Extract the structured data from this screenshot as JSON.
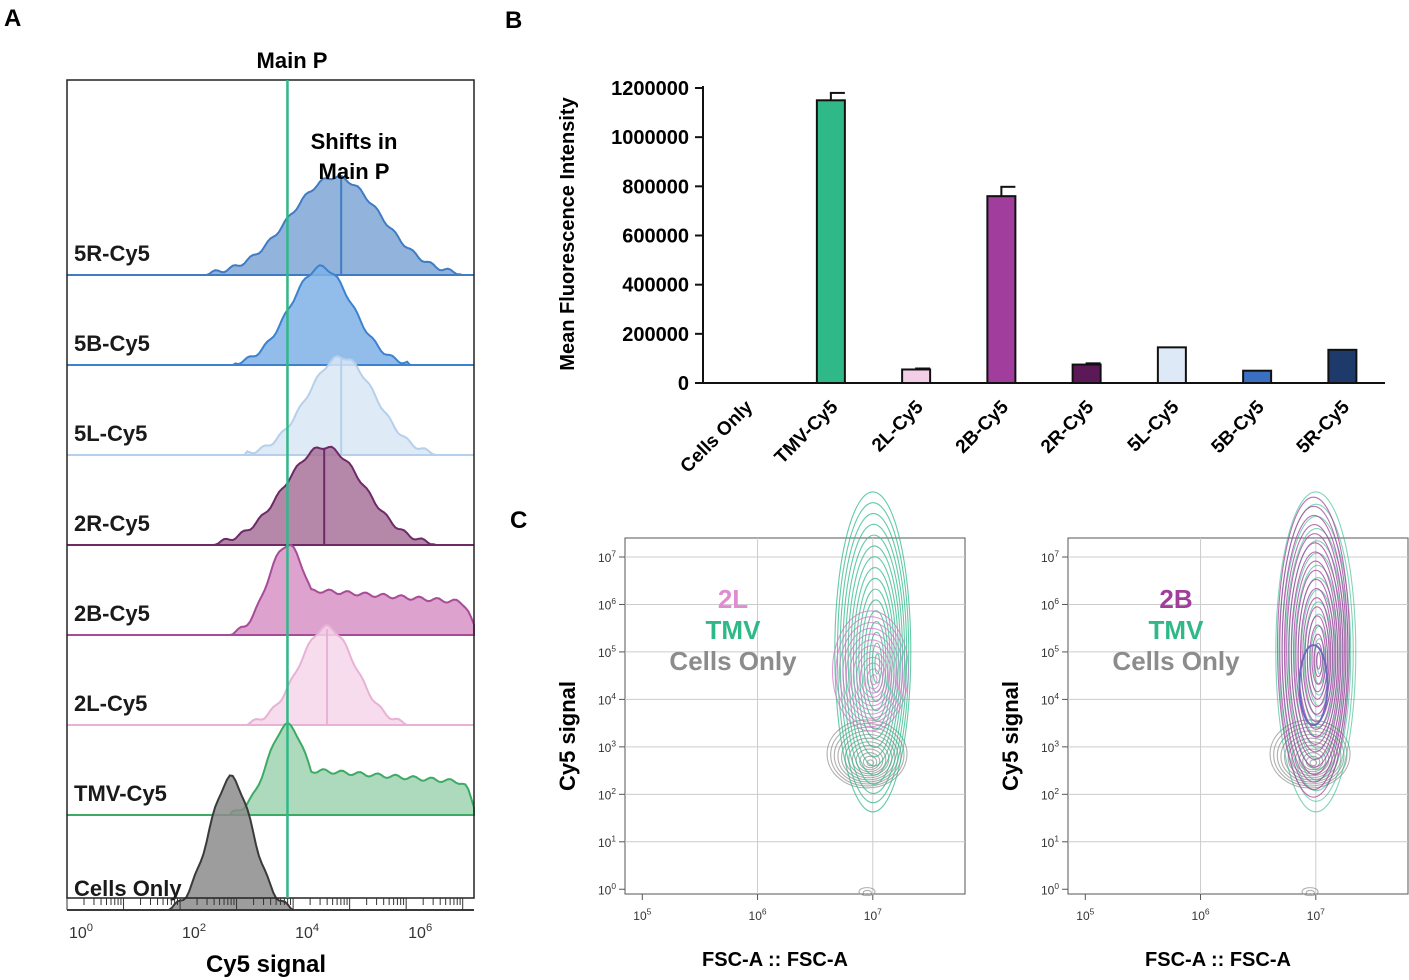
{
  "panel_a": {
    "letter": "A",
    "title": "Main P",
    "annotation": [
      "Shifts in",
      "Main P"
    ],
    "xlabel": "Cy5 signal",
    "x_ticks": [
      {
        "base": "10",
        "exp": "0",
        "log": 0
      },
      {
        "base": "10",
        "exp": "2",
        "log": 2
      },
      {
        "base": "10",
        "exp": "4",
        "log": 4
      },
      {
        "base": "10",
        "exp": "6",
        "log": 6
      }
    ],
    "x_range_log": [
      0,
      7.2
    ],
    "main_p_log": 3.9,
    "tracks": [
      {
        "label": "5R-Cy5",
        "fill": "#7fa7d6",
        "line": "#3f7cc4",
        "peak_log": 4.75,
        "width_log": 0.8,
        "shape": "gauss",
        "marker_log": 4.85
      },
      {
        "label": "5B-Cy5",
        "fill": "#7fb2e6",
        "line": "#3d82cf",
        "peak_log": 4.5,
        "width_log": 0.55,
        "shape": "gauss",
        "marker_log": null
      },
      {
        "label": "5L-Cy5",
        "fill": "#d8e6f5",
        "line": "#b6cfeb",
        "peak_log": 4.85,
        "width_log": 0.6,
        "shape": "gauss",
        "marker_log": 4.85
      },
      {
        "label": "2R-Cy5",
        "fill": "#a8739a",
        "line": "#6d2a67",
        "peak_log": 4.55,
        "width_log": 0.7,
        "shape": "gauss",
        "marker_log": 4.55
      },
      {
        "label": "2B-Cy5",
        "fill": "#d792c6",
        "line": "#a84c98",
        "peak_log": 3.9,
        "width_log": 0.35,
        "shape": "plateau",
        "marker_log": null
      },
      {
        "label": "2L-Cy5",
        "fill": "#f4d6ea",
        "line": "#e8b2d6",
        "peak_log": 4.6,
        "width_log": 0.5,
        "shape": "gauss",
        "marker_log": 4.6
      },
      {
        "label": "TMV-Cy5",
        "fill": "#9fd4b2",
        "line": "#3daa65",
        "peak_log": 3.9,
        "width_log": 0.35,
        "shape": "plateau",
        "marker_log": null
      },
      {
        "label": "Cells Only",
        "fill": "#8c8c8c",
        "line": "#3a3a3a",
        "peak_log": 2.9,
        "width_log": 0.38,
        "shape": "gauss",
        "marker_log": null
      }
    ]
  },
  "chart_data": [
    {
      "type": "bar",
      "panel": "B",
      "title": "",
      "xlabel": "",
      "ylabel": "Mean Fluorescence Intensity",
      "ylim": [
        0,
        1200000
      ],
      "y_ticks": [
        0,
        200000,
        400000,
        600000,
        800000,
        1000000,
        1200000
      ],
      "y_tick_labels": [
        "0",
        "200000",
        "400000",
        "600000",
        "800000",
        "1000000",
        "1200000"
      ],
      "categories": [
        "Cells Only",
        "TMV-Cy5",
        "2L-Cy5",
        "2B-Cy5",
        "2R-Cy5",
        "5L-Cy5",
        "5B-Cy5",
        "5R-Cy5"
      ],
      "values": [
        0,
        1150000,
        55000,
        760000,
        75000,
        145000,
        50000,
        135000
      ],
      "errors": [
        0,
        30000,
        4000,
        38000,
        5000,
        0,
        0,
        0
      ],
      "colors": [
        "#ffffff",
        "#2fb888",
        "#f2cfe6",
        "#a13d9c",
        "#5b1a57",
        "#dde9f6",
        "#3a6fc2",
        "#1d3a6b"
      ]
    },
    {
      "type": "contour",
      "panel": "C",
      "plots": [
        {
          "legend": [
            {
              "text": "2L",
              "color": "#e08cd0"
            },
            {
              "text": "TMV",
              "color": "#2fb888"
            },
            {
              "text": "Cells Only",
              "color": "#8c8c8c"
            }
          ],
          "xlabel": "FSC-A :: FSC-A",
          "ylabel": "Cy5 signal",
          "x_ticks": [
            {
              "base": "10",
              "exp": "5"
            },
            {
              "base": "10",
              "exp": "6"
            },
            {
              "base": "10",
              "exp": "7"
            }
          ],
          "y_ticks": [
            {
              "base": "10",
              "exp": "0"
            },
            {
              "base": "10",
              "exp": "1"
            },
            {
              "base": "10",
              "exp": "2"
            },
            {
              "base": "10",
              "exp": "3"
            },
            {
              "base": "10",
              "exp": "4"
            },
            {
              "base": "10",
              "exp": "5"
            },
            {
              "base": "10",
              "exp": "6"
            },
            {
              "base": "10",
              "exp": "7"
            }
          ]
        },
        {
          "legend": [
            {
              "text": "2B",
              "color": "#a13d9c"
            },
            {
              "text": "TMV",
              "color": "#2fb888"
            },
            {
              "text": "Cells Only",
              "color": "#8c8c8c"
            }
          ],
          "xlabel": "FSC-A :: FSC-A",
          "ylabel": "Cy5 signal",
          "x_ticks": [
            {
              "base": "10",
              "exp": "5"
            },
            {
              "base": "10",
              "exp": "6"
            },
            {
              "base": "10",
              "exp": "7"
            }
          ],
          "y_ticks": [
            {
              "base": "10",
              "exp": "0"
            },
            {
              "base": "10",
              "exp": "1"
            },
            {
              "base": "10",
              "exp": "2"
            },
            {
              "base": "10",
              "exp": "3"
            },
            {
              "base": "10",
              "exp": "4"
            },
            {
              "base": "10",
              "exp": "5"
            },
            {
              "base": "10",
              "exp": "6"
            },
            {
              "base": "10",
              "exp": "7"
            }
          ]
        }
      ]
    }
  ],
  "labels": {
    "b": "B",
    "c": "C"
  },
  "colors": {
    "main_p_line": "#2fb888",
    "gray_contour": "#9a9a9a"
  }
}
